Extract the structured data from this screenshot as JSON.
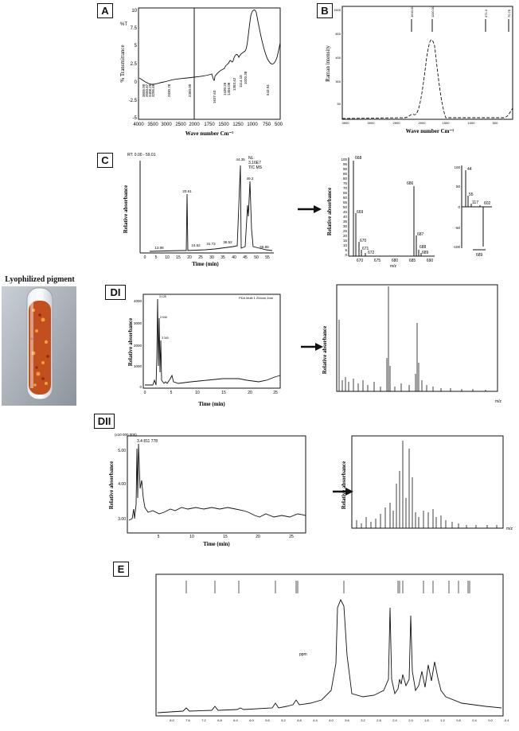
{
  "figure": {
    "tube_caption": "Lyophilized pigment",
    "panels": {
      "A": {
        "label": "A",
        "ylabel": "% Transmittance",
        "xlabel": "Wave number Cm⁻¹",
        "yticks": [
          "10",
          "7.5",
          "5",
          "2.5",
          "0",
          "-2.5",
          "-5"
        ],
        "xticks": [
          "4000",
          "3500",
          "3000",
          "2500",
          "2000",
          "1750",
          "1500",
          "1250",
          "1000",
          "750",
          "500"
        ],
        "y_corner_labels": [
          "%T"
        ],
        "peaks": [
          "3605.00",
          "3550.67",
          "3408.25",
          "3295.68",
          "2930.78",
          "2360.00",
          "1637.63",
          "1430.26",
          "1456.08",
          "1383.42",
          "1114.18",
          "1020.38",
          "543.94"
        ]
      },
      "B": {
        "label": "B",
        "ylabel": "Raman intensity",
        "xlabel": "Wave number Cm⁻¹",
        "peaks": [
          "1640.00",
          "1100.00",
          "371.0",
          "70.78"
        ],
        "yticks": [
          "1500",
          "800",
          "400",
          "300",
          "50"
        ],
        "xticks": [
          "3500",
          "3000",
          "2500",
          "2000",
          "1500",
          "1000",
          "500"
        ]
      },
      "C": {
        "label": "C",
        "header_left": "RT: 0.00 - 59.01",
        "header_right": [
          "NL:",
          "3.16E7",
          "TIC MS"
        ],
        "ylabel": "Relative absorbance",
        "xlabel": "Time (min)",
        "xticks": [
          "0",
          "5",
          "10",
          "15",
          "20",
          "25",
          "30",
          "35",
          "40",
          "45",
          "50",
          "55"
        ],
        "peak_labels": [
          "13.98",
          "20.61",
          "24.62",
          "31.73",
          "38.52",
          "44.35",
          "49.2",
          "55.89"
        ],
        "ms1_ylabel": "Relative absorbance",
        "ms1_xlabel": "m/z",
        "ms1_yticks": [
          "100",
          "95",
          "90",
          "85",
          "80",
          "75",
          "70",
          "65",
          "60",
          "55",
          "50",
          "45",
          "40",
          "35",
          "30",
          "25",
          "20",
          "15",
          "10",
          "5",
          "0"
        ],
        "ms1_xticks": [
          "670",
          "675",
          "680",
          "685",
          "690"
        ],
        "ms1_peaks": [
          "668",
          "669",
          "670",
          "671",
          "672",
          "686",
          "687",
          "688",
          "689"
        ],
        "ms2_yticks": [
          "100",
          "50",
          "0",
          "-50",
          "-100"
        ],
        "ms2_peaks": [
          "44",
          "55",
          "117",
          "602",
          "689"
        ]
      },
      "DI": {
        "label": "DI",
        "header": "PDA Multi 1 254nm,4nm",
        "ylabel": "Relative absorbance",
        "xlabel": "Time (min)",
        "yticks": [
          "4000",
          "3000",
          "2000",
          "1000",
          "0"
        ],
        "xticks": [
          "0",
          "5",
          "10",
          "15",
          "20",
          "25"
        ],
        "peak_labels": [
          "3.128",
          "2.946",
          "3.340"
        ],
        "ms_ylabel": "Relative absorbance",
        "ms_xlabel": "m/z"
      },
      "DII": {
        "label": "DII",
        "yscale": "(x10 000 000)",
        "peak_label": "3.4 811 778",
        "ylabel": "Relative absorbance",
        "xlabel": "Time (min)",
        "yticks": [
          "5.00",
          "4.00",
          "3.00"
        ],
        "xticks": [
          "5",
          "10",
          "15",
          "20",
          "25"
        ],
        "ms_ylabel": "Relative absorbance",
        "ms_xlabel": "m/z"
      },
      "E": {
        "label": "E",
        "axis_label": "ppm",
        "xticks": [
          "8.0",
          "7.6",
          "7.2",
          "6.8",
          "6.4",
          "6.0",
          "5.6",
          "5.2",
          "4.8",
          "4.4",
          "4.0",
          "3.6",
          "3.2",
          "2.8",
          "2.4",
          "2.0",
          "1.6",
          "1.2",
          "0.8",
          "0.4",
          "0.0",
          "-0.4"
        ]
      }
    }
  }
}
